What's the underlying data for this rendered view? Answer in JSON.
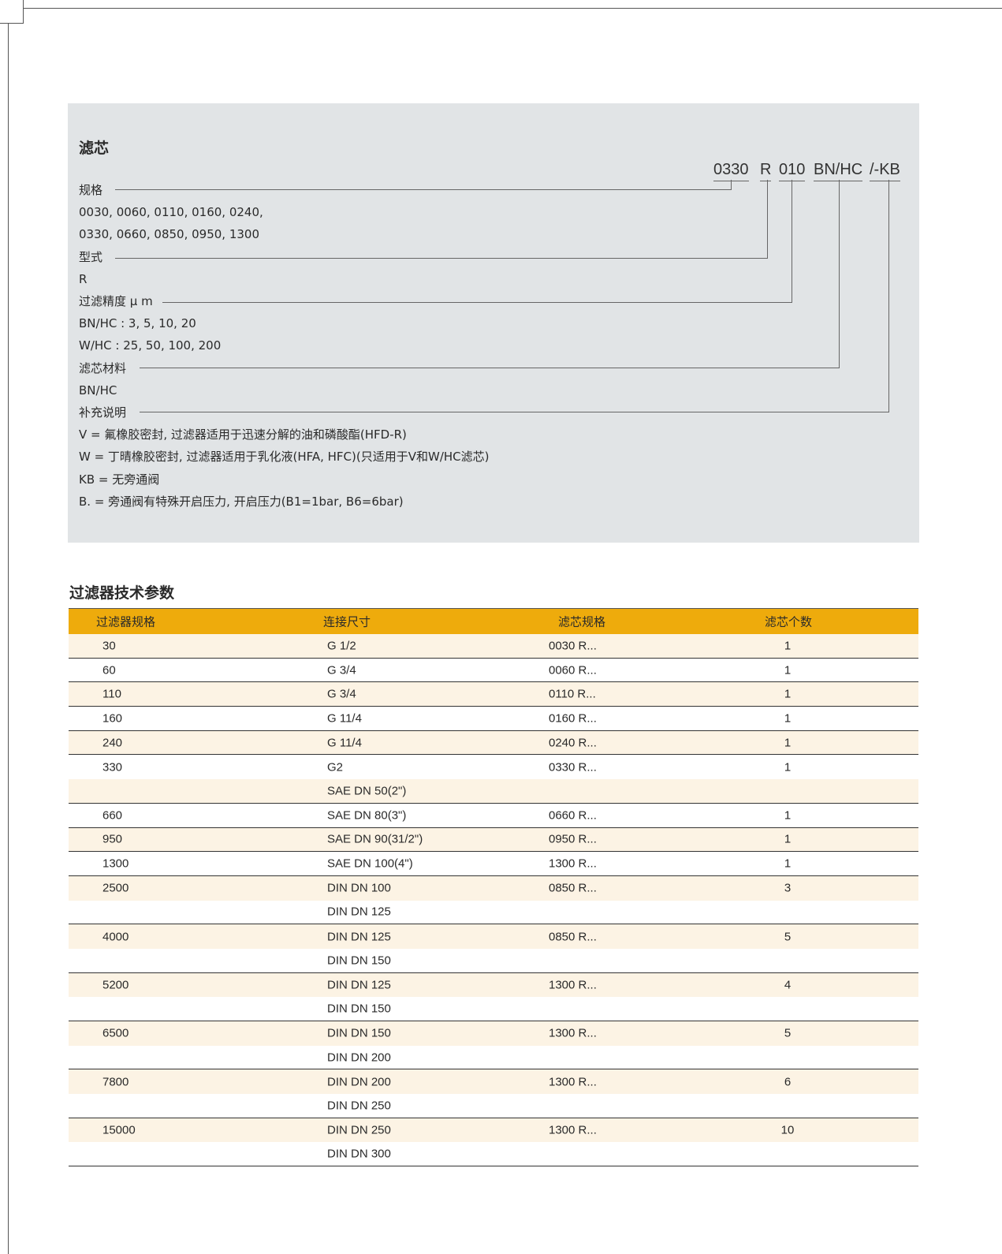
{
  "spec": {
    "title": "滤芯",
    "code": [
      "0330",
      "R",
      "010",
      "BN/HC",
      "/-KB"
    ],
    "lines": [
      "规格",
      "0030, 0060, 0110, 0160, 0240,",
      "0330, 0660, 0850, 0950, 1300",
      "型式",
      "R",
      "过滤精度 μ m",
      "BN/HC   : 3, 5, 10, 20",
      "W/HC    : 25, 50, 100, 200",
      "滤芯材料",
      "BN/HC",
      "补充说明",
      "V   = 氟橡胶密封, 过滤器适用于迅速分解的油和磷酸酯(HFD-R)",
      "W  = 丁晴橡胶密封, 过滤器适用于乳化液(HFA, HFC)(只适用于V和W/HC滤芯)",
      "KB = 无旁通阀",
      "B.  = 旁通阀有特殊开启压力, 开启压力(B1=1bar, B6=6bar)"
    ]
  },
  "table": {
    "title": "过滤器技术参数",
    "header_color": "#eeab0c",
    "headers": [
      "过滤器规格",
      "连接尺寸",
      "滤芯规格",
      "滤芯个数"
    ],
    "groups": [
      [
        [
          "30",
          "G 1/2",
          "0030 R...",
          "1"
        ]
      ],
      [
        [
          "60",
          "G 3/4",
          "0060 R...",
          "1"
        ]
      ],
      [
        [
          "110",
          "G 3/4",
          "0110 R...",
          "1"
        ]
      ],
      [
        [
          "160",
          "G 11/4",
          "0160 R...",
          "1"
        ]
      ],
      [
        [
          "240",
          "G 11/4",
          "0240 R...",
          "1"
        ]
      ],
      [
        [
          "330",
          "G2",
          "0330 R...",
          "1"
        ],
        [
          "",
          "SAE DN 50(2\")",
          "",
          ""
        ]
      ],
      [
        [
          "660",
          "SAE DN 80(3\")",
          "0660 R...",
          "1"
        ]
      ],
      [
        [
          "950",
          "SAE DN 90(31/2\")",
          "0950 R...",
          "1"
        ]
      ],
      [
        [
          "1300",
          "SAE DN 100(4\")",
          "1300 R...",
          "1"
        ]
      ],
      [
        [
          "2500",
          "DIN DN 100",
          "0850 R...",
          "3"
        ],
        [
          "",
          "DIN DN 125",
          "",
          ""
        ]
      ],
      [
        [
          "4000",
          "DIN DN 125",
          "0850 R...",
          "5"
        ],
        [
          "",
          "DIN DN 150",
          "",
          ""
        ]
      ],
      [
        [
          "5200",
          "DIN DN 125",
          "1300 R...",
          "4"
        ],
        [
          "",
          "DIN DN 150",
          "",
          ""
        ]
      ],
      [
        [
          "6500",
          "DIN DN 150",
          "1300 R...",
          "5"
        ],
        [
          "",
          "DIN DN 200",
          "",
          ""
        ]
      ],
      [
        [
          "7800",
          "DIN DN 200",
          "1300 R...",
          "6"
        ],
        [
          "",
          "DIN DN 250",
          "",
          ""
        ]
      ],
      [
        [
          "15000",
          "DIN DN 250",
          "1300 R...",
          "10"
        ],
        [
          "",
          "DIN DN 300",
          "",
          ""
        ]
      ]
    ]
  }
}
